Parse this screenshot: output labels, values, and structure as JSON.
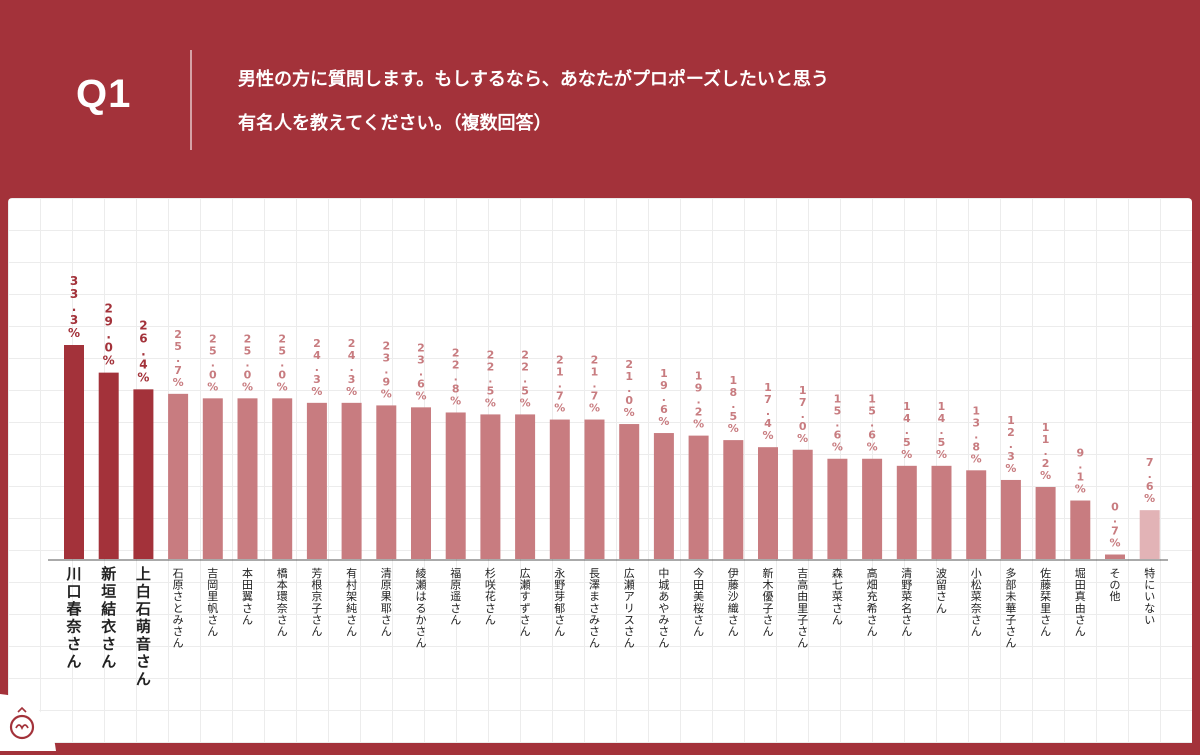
{
  "header": {
    "q_label": "Q1",
    "question_line1": "男性の方に質問します。もしするなら、あなたがプロポーズしたいと思う",
    "question_line2": "有名人を教えてください。（複数回答）"
  },
  "colors": {
    "background": "#a3323a",
    "top3_bar": "#a3323a",
    "bar": "#c87c80",
    "last_bar": "#e2b3b6",
    "top3_label": "#a3323a",
    "label": "#c87c80"
  },
  "logo": {
    "icon": "ring-hands-icon"
  },
  "chart_data": {
    "type": "bar",
    "categories": [
      "川口春奈さん",
      "新垣結衣さん",
      "上白石萌音さん",
      "石原さとみさん",
      "吉岡里帆さん",
      "本田翼さん",
      "橋本環奈さん",
      "芳根京子さん",
      "有村架純さん",
      "清原果耶さん",
      "綾瀬はるかさん",
      "福原遥さん",
      "杉咲花さん",
      "広瀬すずさん",
      "永野芽郁さん",
      "長澤まさみさん",
      "広瀬アリスさん",
      "中城あやみさん",
      "今田美桜さん",
      "伊藤沙織さん",
      "新木優子さん",
      "吉高由里子さん",
      "森七菜さん",
      "高畑充希さん",
      "清野菜名さん",
      "波留さん",
      "小松菜奈さん",
      "多部未華子さん",
      "佐藤栞里さん",
      "堀田真由さん",
      "その他",
      "特にいない"
    ],
    "values": [
      33.3,
      29.0,
      26.4,
      25.7,
      25.0,
      25.0,
      25.0,
      24.3,
      24.3,
      23.9,
      23.6,
      22.8,
      22.5,
      22.5,
      21.7,
      21.7,
      21.0,
      19.6,
      19.2,
      18.5,
      17.4,
      17.0,
      15.6,
      15.6,
      14.5,
      14.5,
      13.8,
      12.3,
      11.2,
      9.1,
      0.7,
      7.6
    ],
    "value_labels": [
      "33.3%",
      "29.0%",
      "26.4%",
      "25.7%",
      "25.0%",
      "25.0%",
      "25.0%",
      "24.3%",
      "24.3%",
      "23.9%",
      "23.6%",
      "22.8%",
      "22.5%",
      "22.5%",
      "21.7%",
      "21.7%",
      "21.0%",
      "19.6%",
      "19.2%",
      "18.5%",
      "17.4%",
      "17.0%",
      "15.6%",
      "15.6%",
      "14.5%",
      "14.5%",
      "13.8%",
      "12.3%",
      "11.2%",
      "9.1%",
      "0.7%",
      "7.6%"
    ],
    "ylim": [
      0,
      33.3
    ],
    "grid": true,
    "title": "",
    "xlabel": "",
    "ylabel": ""
  }
}
